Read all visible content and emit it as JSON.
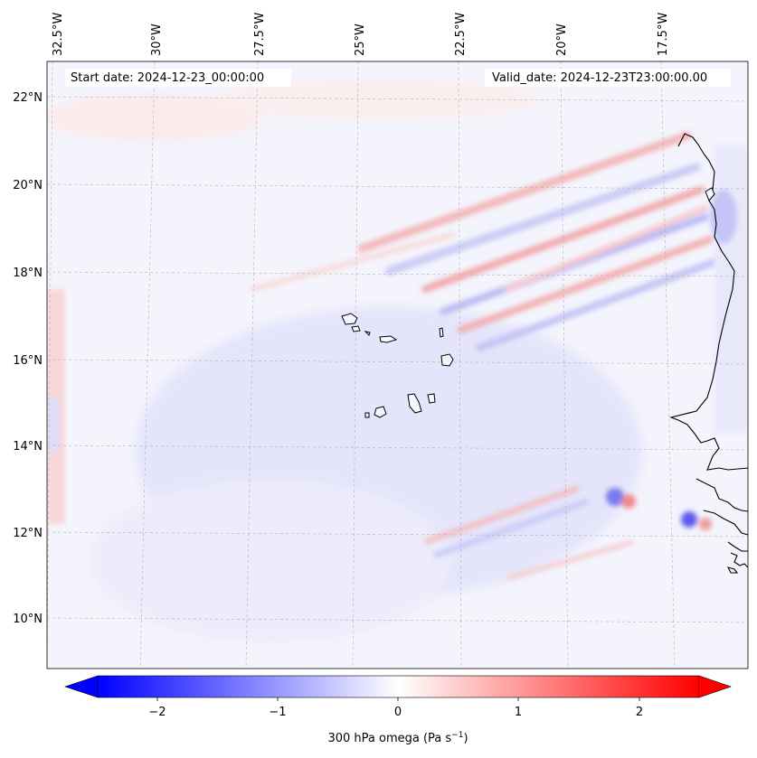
{
  "map": {
    "start_date_text": "Start date: 2024-12-23_00:00:00",
    "valid_date_text": "Valid_date: 2024-12-23T23:00:00.00",
    "lon_labels": [
      "32.5°W",
      "30°W",
      "27.5°W",
      "25°W",
      "22.5°W",
      "20°W",
      "17.5°W"
    ],
    "lat_labels": [
      "22°N",
      "20°N",
      "18°N",
      "16°N",
      "14°N",
      "12°N",
      "10°N"
    ],
    "colorbar": {
      "label_main": "300 hPa omega (Pa s",
      "label_exp": "−1",
      "label_end": ")",
      "ticks": [
        "−2",
        "−1",
        "0",
        "1",
        "2"
      ],
      "range": [
        -2.6,
        2.6
      ],
      "low_color": "#0000ff",
      "mid_color": "#ffffff",
      "high_color": "#ff0000"
    },
    "field_colors": {
      "coast_line": "#000000",
      "grid_line": "#b0b0b0"
    }
  }
}
